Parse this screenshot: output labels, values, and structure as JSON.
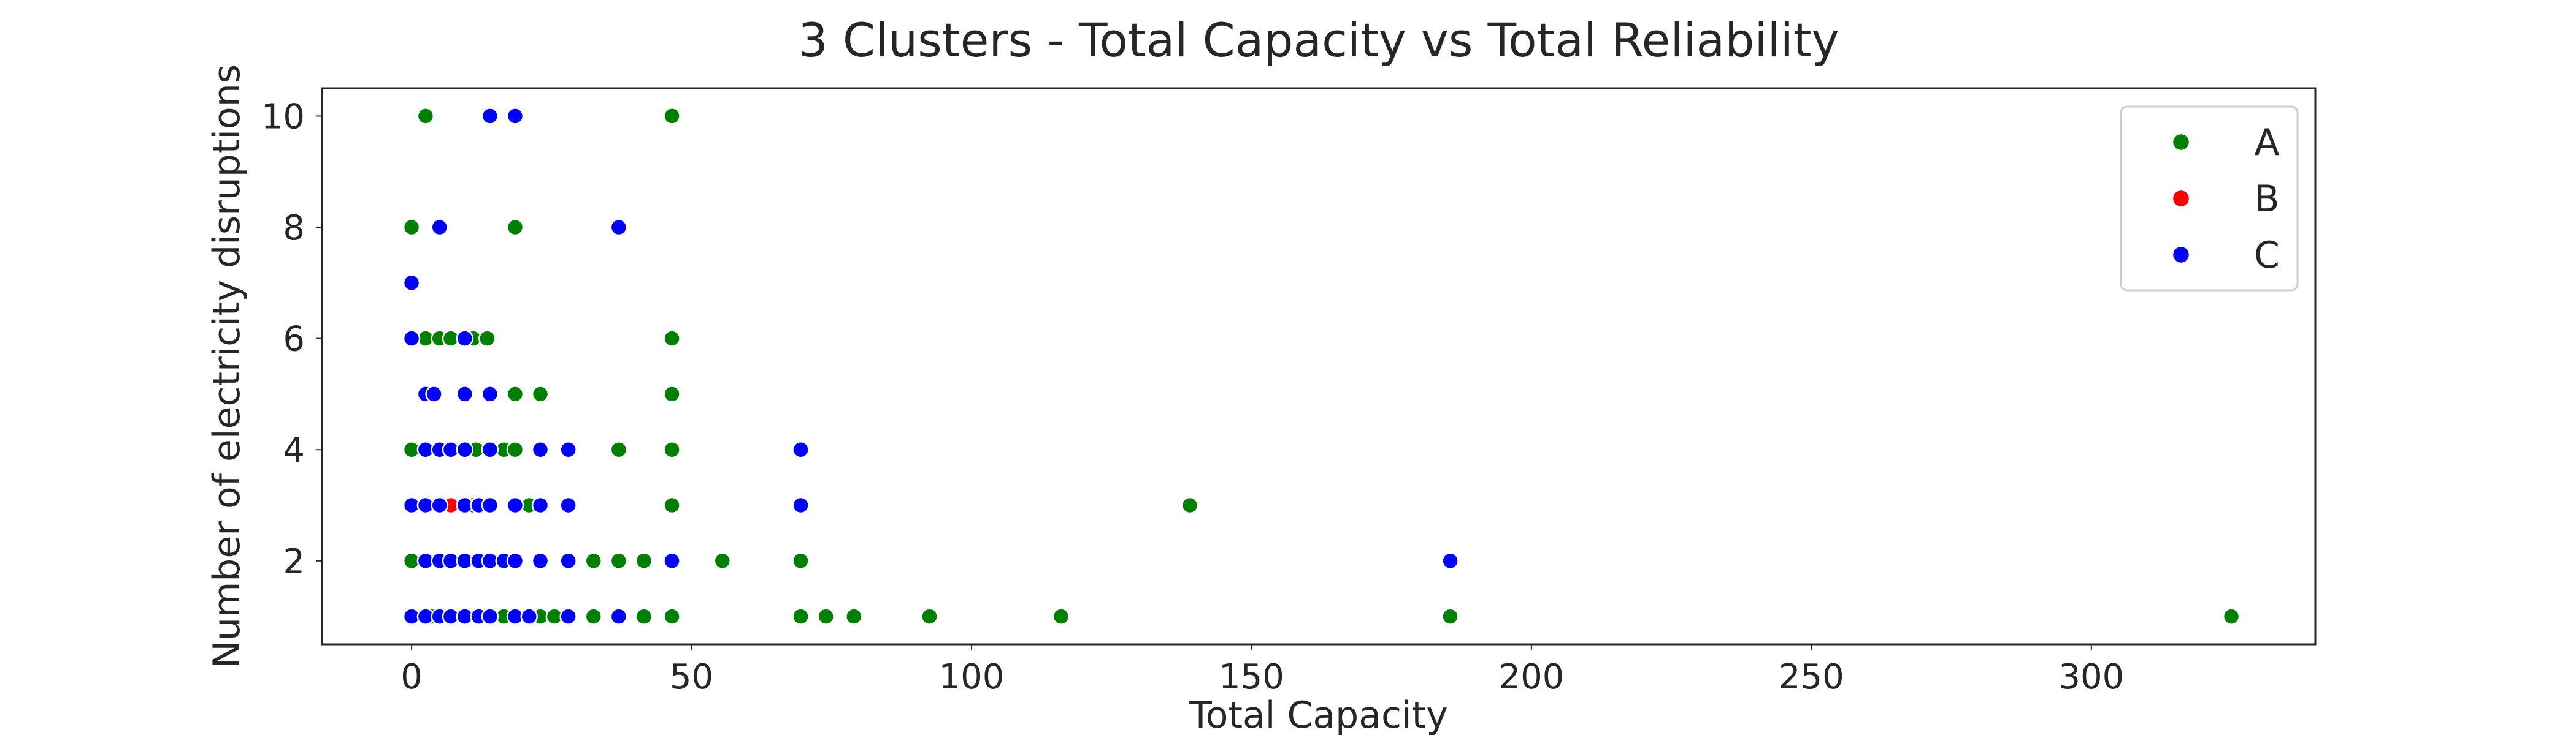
{
  "chart_data": {
    "type": "scatter",
    "title": "3 Clusters - Total Capacity  vs Total Reliability",
    "xlabel": "Total Capacity",
    "ylabel": "Number of electricity disruptions",
    "xlim": [
      -16,
      340
    ],
    "ylim": [
      0.5,
      10.5
    ],
    "xticks": [
      0,
      50,
      100,
      150,
      200,
      250,
      300
    ],
    "yticks": [
      2,
      4,
      6,
      8,
      10
    ],
    "grid": false,
    "legend_position": "top-right",
    "series": [
      {
        "name": "A",
        "color": "#008000",
        "points": [
          [
            2.5,
            10
          ],
          [
            46.5,
            10
          ],
          [
            0,
            8
          ],
          [
            18.5,
            8
          ],
          [
            2.5,
            6
          ],
          [
            5,
            6
          ],
          [
            7,
            6
          ],
          [
            11,
            6
          ],
          [
            13.5,
            6
          ],
          [
            46.5,
            6
          ],
          [
            18.5,
            5
          ],
          [
            23,
            5
          ],
          [
            46.5,
            5
          ],
          [
            0,
            4
          ],
          [
            11.5,
            4
          ],
          [
            16.5,
            4
          ],
          [
            18.5,
            4
          ],
          [
            37,
            4
          ],
          [
            46.5,
            4
          ],
          [
            11,
            3
          ],
          [
            21,
            3
          ],
          [
            46.5,
            3
          ],
          [
            139,
            3
          ],
          [
            0,
            2
          ],
          [
            32.5,
            2
          ],
          [
            37,
            2
          ],
          [
            41.5,
            2
          ],
          [
            55.5,
            2
          ],
          [
            69.5,
            2
          ],
          [
            0,
            1
          ],
          [
            3.5,
            1
          ],
          [
            16.5,
            1
          ],
          [
            23,
            1
          ],
          [
            25.5,
            1
          ],
          [
            32.5,
            1
          ],
          [
            41.5,
            1
          ],
          [
            46.5,
            1
          ],
          [
            69.5,
            1
          ],
          [
            74,
            1
          ],
          [
            79,
            1
          ],
          [
            92.5,
            1
          ],
          [
            116,
            1
          ],
          [
            185.5,
            1
          ],
          [
            325,
            1
          ]
        ]
      },
      {
        "name": "B",
        "color": "#ff0000",
        "points": [
          [
            7,
            3
          ]
        ]
      },
      {
        "name": "C",
        "color": "#0000ff",
        "points": [
          [
            14,
            10
          ],
          [
            18.5,
            10
          ],
          [
            5,
            8
          ],
          [
            37,
            8
          ],
          [
            0,
            7
          ],
          [
            0,
            6
          ],
          [
            9.5,
            6
          ],
          [
            2.5,
            5
          ],
          [
            4,
            5
          ],
          [
            9.5,
            5
          ],
          [
            14,
            5
          ],
          [
            2.5,
            4
          ],
          [
            5,
            4
          ],
          [
            7,
            4
          ],
          [
            9.5,
            4
          ],
          [
            14,
            4
          ],
          [
            23,
            4
          ],
          [
            28,
            4
          ],
          [
            69.5,
            4
          ],
          [
            0,
            3
          ],
          [
            2.5,
            3
          ],
          [
            5,
            3
          ],
          [
            9.5,
            3
          ],
          [
            12,
            3
          ],
          [
            14,
            3
          ],
          [
            18.5,
            3
          ],
          [
            23,
            3
          ],
          [
            28,
            3
          ],
          [
            69.5,
            3
          ],
          [
            2.5,
            2
          ],
          [
            5,
            2
          ],
          [
            7,
            2
          ],
          [
            9.5,
            2
          ],
          [
            12,
            2
          ],
          [
            14,
            2
          ],
          [
            16.5,
            2
          ],
          [
            18.5,
            2
          ],
          [
            23,
            2
          ],
          [
            28,
            2
          ],
          [
            46.5,
            2
          ],
          [
            185.5,
            2
          ],
          [
            0,
            1
          ],
          [
            2.5,
            1
          ],
          [
            5,
            1
          ],
          [
            7,
            1
          ],
          [
            9.5,
            1
          ],
          [
            12,
            1
          ],
          [
            14,
            1
          ],
          [
            18.5,
            1
          ],
          [
            21,
            1
          ],
          [
            28,
            1
          ],
          [
            37,
            1
          ]
        ]
      }
    ]
  }
}
